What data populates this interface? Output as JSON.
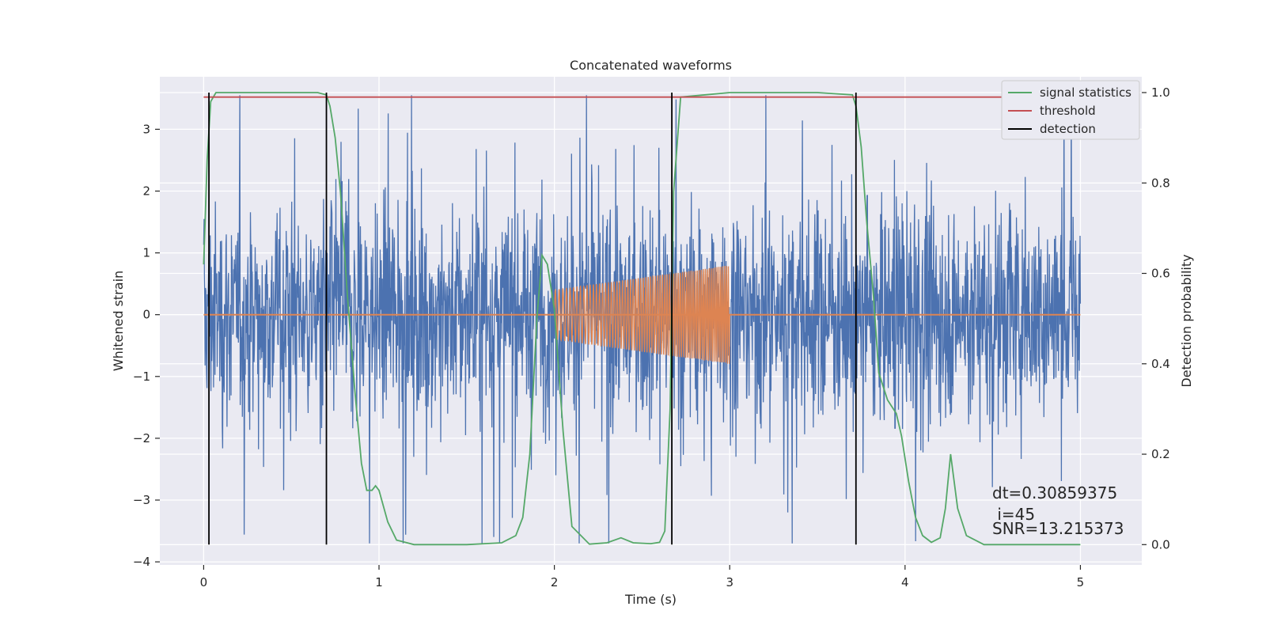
{
  "chart_data": {
    "type": "line",
    "title": "Concatenated waveforms",
    "xlabel": "Time (s)",
    "ylabel": "Whitened strain",
    "y2label": "Detection probability",
    "xlim": [
      -0.25,
      5.35
    ],
    "ylim": [
      -4.05,
      3.85
    ],
    "y2lim": [
      -0.045,
      1.035
    ],
    "xticks": [
      0,
      1,
      2,
      3,
      4,
      5
    ],
    "xtick_labels": [
      "0",
      "1",
      "2",
      "3",
      "4",
      "5"
    ],
    "yticks": [
      -4,
      -3,
      -2,
      -1,
      0,
      1,
      2,
      3
    ],
    "ytick_labels": [
      "−4",
      "−3",
      "−2",
      "−1",
      "0",
      "1",
      "2",
      "3"
    ],
    "y2ticks": [
      0.0,
      0.2,
      0.4,
      0.6,
      0.8,
      1.0
    ],
    "y2tick_labels": [
      "0.0",
      "0.2",
      "0.4",
      "0.6",
      "0.8",
      "1.0"
    ],
    "grid": true,
    "legend_position": "top-right",
    "colors": {
      "noise": "#4c72b0",
      "injection": "#dd8452",
      "signal_statistics": "#55a868",
      "threshold": "#c44e52",
      "detection": "#000000",
      "axes_bg": "#eaeaf2"
    },
    "noise_series": {
      "x_range": [
        0,
        5
      ],
      "core_amplitude": [
        -0.8,
        0.65
      ],
      "peak_extremes": [
        -3.7,
        3.55
      ]
    },
    "injection_series": {
      "x_range": [
        2.0,
        3.0
      ],
      "amplitude_start": 0.4,
      "amplitude_end": 0.8,
      "baseline_y": 0
    },
    "signal_statistics": {
      "x": [
        0,
        0.02,
        0.04,
        0.07,
        0.15,
        0.4,
        0.65,
        0.7,
        0.72,
        0.75,
        0.78,
        0.82,
        0.86,
        0.9,
        0.93,
        0.96,
        0.98,
        1.0,
        1.05,
        1.1,
        1.2,
        1.5,
        1.7,
        1.78,
        1.82,
        1.86,
        1.9,
        1.93,
        1.96,
        2.0,
        2.05,
        2.1,
        2.2,
        2.3,
        2.38,
        2.45,
        2.55,
        2.6,
        2.63,
        2.66,
        2.68,
        2.72,
        3.0,
        3.5,
        3.7,
        3.72,
        3.75,
        3.78,
        3.82,
        3.85,
        3.9,
        3.95,
        3.98,
        4.02,
        4.06,
        4.1,
        4.15,
        4.2,
        4.23,
        4.26,
        4.3,
        4.35,
        4.45,
        5.0
      ],
      "values": [
        0.62,
        0.85,
        0.98,
        1.0,
        1.0,
        1.0,
        1.0,
        0.995,
        0.97,
        0.9,
        0.78,
        0.55,
        0.35,
        0.18,
        0.12,
        0.12,
        0.13,
        0.12,
        0.05,
        0.01,
        0.0,
        0.0,
        0.004,
        0.02,
        0.06,
        0.2,
        0.5,
        0.64,
        0.62,
        0.52,
        0.25,
        0.04,
        0.001,
        0.004,
        0.015,
        0.004,
        0.002,
        0.005,
        0.03,
        0.3,
        0.78,
        0.99,
        1.0,
        1.0,
        0.995,
        0.97,
        0.88,
        0.72,
        0.55,
        0.38,
        0.32,
        0.29,
        0.24,
        0.14,
        0.06,
        0.02,
        0.005,
        0.015,
        0.08,
        0.2,
        0.08,
        0.02,
        0.0,
        0.0
      ]
    },
    "threshold": {
      "value": 0.99,
      "x_range": [
        0,
        5
      ]
    },
    "detections": [
      0.03,
      0.7,
      2.67,
      3.72
    ],
    "detection_span": [
      0.0,
      1.0
    ],
    "legend": [
      {
        "label": "signal statistics",
        "color": "#55a868"
      },
      {
        "label": "threshold",
        "color": "#c44e52"
      },
      {
        "label": "detection",
        "color": "#000000"
      }
    ],
    "annotations": {
      "dt": "dt=0.30859375",
      "i": " i=45",
      "snr": "SNR=13.215373"
    }
  }
}
